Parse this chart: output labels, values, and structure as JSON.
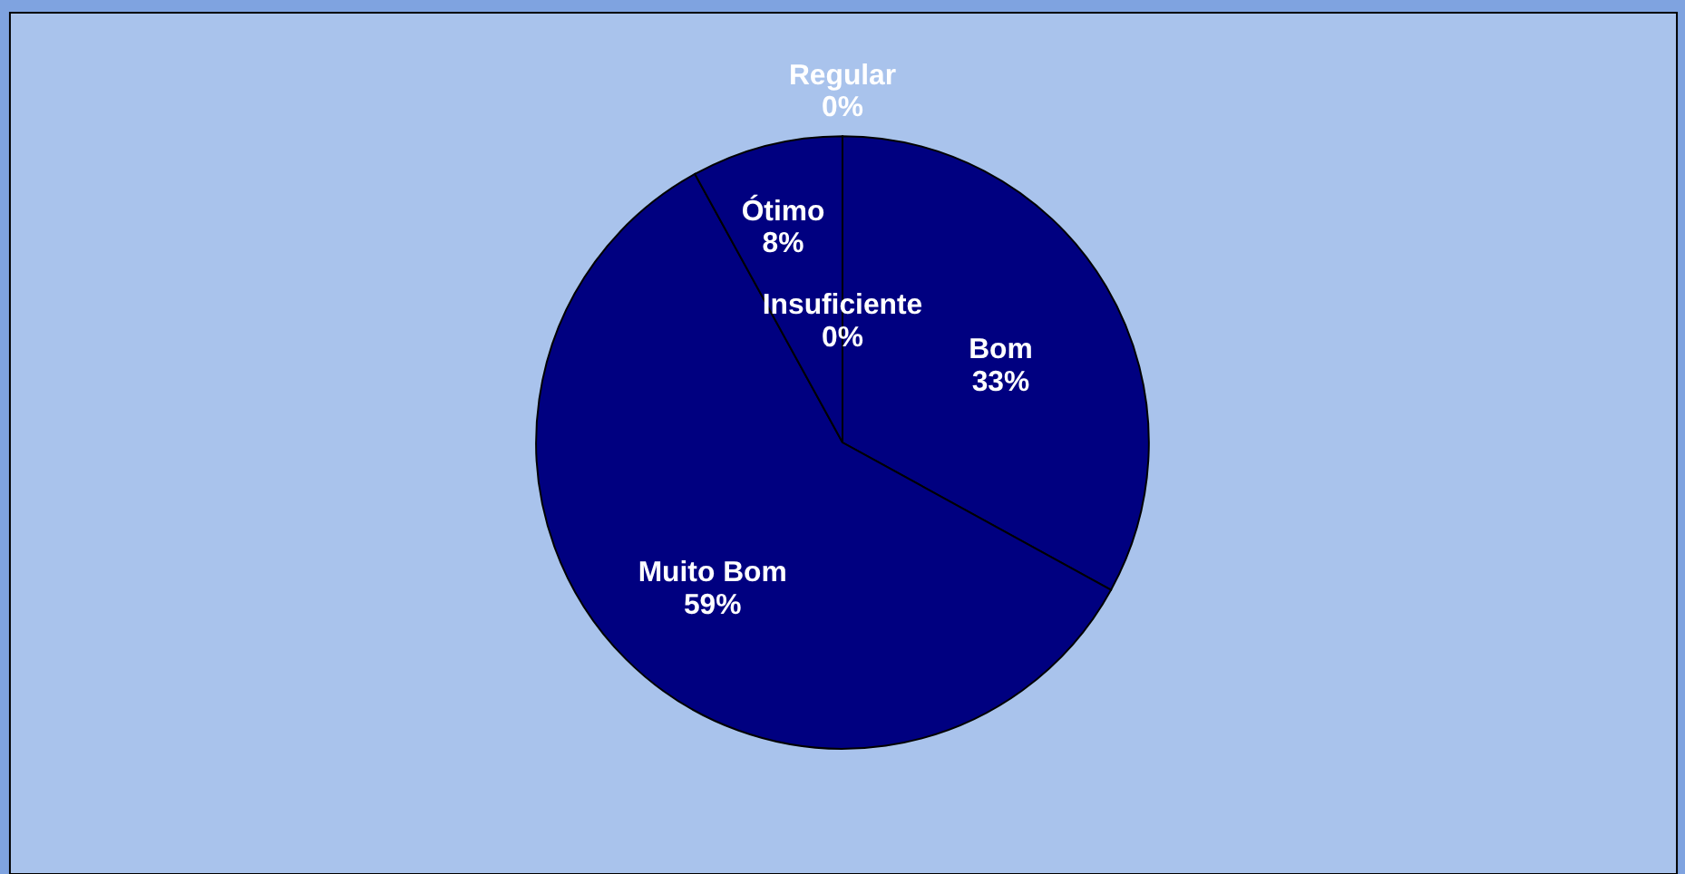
{
  "chart_data": {
    "type": "pie",
    "categories": [
      "Bom",
      "Muito Bom",
      "Ótimo",
      "Regular",
      "Insuficiente"
    ],
    "values": [
      33,
      59,
      8,
      0,
      0
    ],
    "colors": [
      "#000080",
      "#000080",
      "#000080",
      "#000080",
      "#000080"
    ],
    "value_labels": [
      "33%",
      "59%",
      "8%",
      "0%",
      "0%"
    ],
    "legend": false
  }
}
